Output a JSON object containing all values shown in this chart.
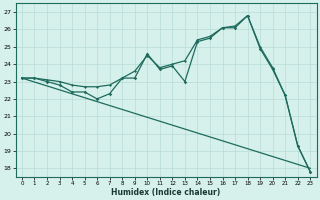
{
  "xlabel": "Humidex (Indice chaleur)",
  "xlim": [
    -0.5,
    23.5
  ],
  "ylim": [
    17.5,
    27.5
  ],
  "xticks": [
    0,
    1,
    2,
    3,
    4,
    5,
    6,
    7,
    8,
    9,
    10,
    11,
    12,
    13,
    14,
    15,
    16,
    17,
    18,
    19,
    20,
    21,
    22,
    23
  ],
  "yticks": [
    18,
    19,
    20,
    21,
    22,
    23,
    24,
    25,
    26,
    27
  ],
  "bg_color": "#d6f0eb",
  "grid_color": "#b8ddd6",
  "line_color": "#1e6b5e",
  "line1_x": [
    0,
    1,
    2,
    3,
    4,
    5,
    6,
    7,
    8,
    9,
    10,
    11,
    12,
    13,
    14,
    15,
    16,
    17,
    18,
    19,
    20,
    21,
    22,
    23
  ],
  "line1_y": [
    23.2,
    23.2,
    23.0,
    22.8,
    22.4,
    22.4,
    22.0,
    22.3,
    23.2,
    23.2,
    24.6,
    23.7,
    23.9,
    23.0,
    25.3,
    25.5,
    26.1,
    26.1,
    26.8,
    24.9,
    23.7,
    22.2,
    19.3,
    17.8
  ],
  "line2_x": [
    0,
    1,
    2,
    3,
    4,
    5,
    6,
    7,
    8,
    9,
    10,
    11,
    12,
    13,
    14,
    15,
    16,
    17,
    18,
    19,
    20,
    21,
    22,
    23
  ],
  "line2_y": [
    23.2,
    23.2,
    23.1,
    23.0,
    22.8,
    22.7,
    22.7,
    22.8,
    23.2,
    23.6,
    24.5,
    23.8,
    24.0,
    24.2,
    25.4,
    25.6,
    26.1,
    26.2,
    26.8,
    25.0,
    23.8,
    22.2,
    19.3,
    17.8
  ],
  "line3_x": [
    0,
    23
  ],
  "line3_y": [
    23.2,
    18.0
  ]
}
